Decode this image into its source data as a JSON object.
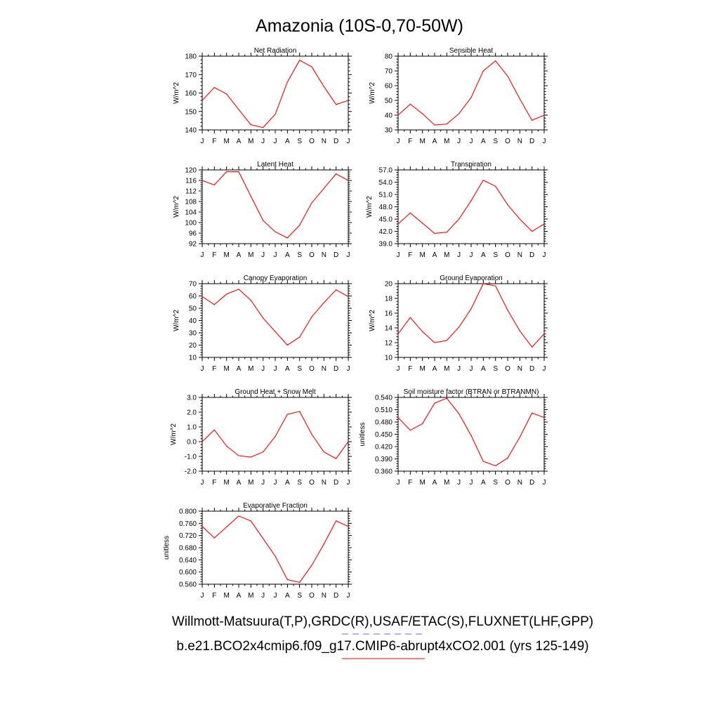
{
  "title": "Amazonia (10S-0,70-50W)",
  "legend": {
    "lines": [
      {
        "text": "Willmott-Matsuura(T,P),GRDC(R),USAF/ETAC(S),FLUXNET(LHF,GPP)",
        "line_color": "#6666ff",
        "line_style": "dashed"
      },
      {
        "text": "b.e21.BCO2x4cmip6.f09_g17.CMIP6-abrupt4xCO2.001 (yrs 125-149)",
        "line_color": "#ff0000",
        "line_style": "solid"
      }
    ]
  },
  "series_color": "#ff0000",
  "chart_data": [
    {
      "type": "line",
      "title": "Net Radiation",
      "ylabel": "W/m^2",
      "x": [
        "J",
        "F",
        "M",
        "A",
        "M",
        "J",
        "J",
        "A",
        "S",
        "O",
        "N",
        "D",
        "J"
      ],
      "values": [
        156.0,
        163.0,
        159.5,
        151.0,
        142.8,
        141.3,
        148.5,
        166.0,
        177.8,
        174.2,
        163.5,
        153.8,
        156.0
      ],
      "ylim": [
        140,
        180
      ],
      "yticks": [
        "140",
        "150",
        "160",
        "170",
        "180"
      ],
      "ytick_values": [
        140,
        150,
        160,
        170,
        180
      ]
    },
    {
      "type": "line",
      "title": "Sensible Heat",
      "ylabel": "W/m^2",
      "x": [
        "J",
        "F",
        "M",
        "A",
        "M",
        "J",
        "J",
        "A",
        "S",
        "O",
        "N",
        "D",
        "J"
      ],
      "values": [
        40.0,
        47.5,
        41.0,
        33.3,
        34.0,
        41.0,
        52.0,
        70.0,
        76.8,
        66.5,
        51.0,
        36.5,
        40.0
      ],
      "ylim": [
        30,
        80
      ],
      "yticks": [
        "30",
        "40",
        "50",
        "60",
        "70",
        "80"
      ],
      "ytick_values": [
        30,
        40,
        50,
        60,
        70,
        80
      ]
    },
    {
      "type": "line",
      "title": "Latent Heat",
      "ylabel": "W/m^2",
      "x": [
        "J",
        "F",
        "M",
        "A",
        "M",
        "J",
        "J",
        "A",
        "S",
        "O",
        "N",
        "D",
        "J"
      ],
      "values": [
        116.0,
        114.3,
        119.3,
        119.3,
        110.0,
        100.8,
        96.5,
        94.2,
        99.0,
        107.5,
        113.0,
        118.5,
        116.0
      ],
      "ylim": [
        92,
        120
      ],
      "yticks": [
        "92",
        "96",
        "100",
        "104",
        "108",
        "112",
        "116",
        "120"
      ],
      "ytick_values": [
        92,
        96,
        100,
        104,
        108,
        112,
        116,
        120
      ]
    },
    {
      "type": "line",
      "title": "Transpiration",
      "ylabel": "W/m^2",
      "x": [
        "J",
        "F",
        "M",
        "A",
        "M",
        "J",
        "J",
        "A",
        "S",
        "O",
        "N",
        "D",
        "J"
      ],
      "values": [
        43.8,
        46.5,
        44.0,
        41.5,
        41.8,
        45.0,
        49.5,
        54.5,
        53.0,
        48.5,
        45.0,
        42.0,
        43.8
      ],
      "ylim": [
        39.0,
        57.0
      ],
      "yticks": [
        "39.0",
        "42.0",
        "45.0",
        "48.0",
        "51.0",
        "54.0",
        "57.0"
      ],
      "ytick_values": [
        39,
        42,
        45,
        48,
        51,
        54,
        57
      ]
    },
    {
      "type": "line",
      "title": "Canopy Evaporation",
      "ylabel": "W/m^2",
      "x": [
        "J",
        "F",
        "M",
        "A",
        "M",
        "J",
        "J",
        "A",
        "S",
        "O",
        "N",
        "D",
        "J"
      ],
      "values": [
        59.5,
        53.0,
        61.5,
        65.5,
        56.5,
        42.0,
        31.0,
        20.0,
        26.5,
        43.0,
        54.5,
        65.0,
        59.5
      ],
      "ylim": [
        10,
        70
      ],
      "yticks": [
        "10",
        "20",
        "30",
        "40",
        "50",
        "60",
        "70"
      ],
      "ytick_values": [
        10,
        20,
        30,
        40,
        50,
        60,
        70
      ]
    },
    {
      "type": "line",
      "title": "Ground Evaporation",
      "ylabel": "W/m^2",
      "x": [
        "J",
        "F",
        "M",
        "A",
        "M",
        "J",
        "J",
        "A",
        "S",
        "O",
        "N",
        "D",
        "J"
      ],
      "values": [
        13.2,
        15.4,
        13.5,
        12.0,
        12.3,
        14.1,
        16.6,
        20.0,
        19.7,
        16.4,
        13.6,
        11.4,
        13.2
      ],
      "ylim": [
        10,
        20
      ],
      "yticks": [
        "10",
        "12",
        "14",
        "16",
        "18",
        "20"
      ],
      "ytick_values": [
        10,
        12,
        14,
        16,
        18,
        20
      ]
    },
    {
      "type": "line",
      "title": "Ground Heat + Snow Melt",
      "ylabel": "W/m^2",
      "x": [
        "J",
        "F",
        "M",
        "A",
        "M",
        "J",
        "J",
        "A",
        "S",
        "O",
        "N",
        "D",
        "J"
      ],
      "values": [
        0.0,
        0.8,
        -0.3,
        -0.95,
        -1.05,
        -0.7,
        0.35,
        1.85,
        2.05,
        0.5,
        -0.7,
        -1.15,
        0.0
      ],
      "ylim": [
        -2.0,
        3.0
      ],
      "yticks": [
        "-2.0",
        "-1.0",
        "0.0",
        "1.0",
        "2.0",
        "3.0"
      ],
      "ytick_values": [
        -2,
        -1,
        0,
        1,
        2,
        3
      ]
    },
    {
      "type": "line",
      "title": "Soil moisture factor (BTRAN or BTRANMN)",
      "ylabel": "unitless",
      "x": [
        "J",
        "F",
        "M",
        "A",
        "M",
        "J",
        "J",
        "A",
        "S",
        "O",
        "N",
        "D",
        "J"
      ],
      "values": [
        0.491,
        0.46,
        0.476,
        0.526,
        0.538,
        0.5,
        0.447,
        0.384,
        0.373,
        0.392,
        0.443,
        0.502,
        0.491
      ],
      "ylim": [
        0.36,
        0.54
      ],
      "yticks": [
        "0.360",
        "0.390",
        "0.420",
        "0.450",
        "0.480",
        "0.510",
        "0.540"
      ],
      "ytick_values": [
        0.36,
        0.39,
        0.42,
        0.45,
        0.48,
        0.51,
        0.54
      ]
    },
    {
      "type": "line",
      "title": "Evaporative Fraction",
      "ylabel": "unitless",
      "x": [
        "J",
        "F",
        "M",
        "A",
        "M",
        "J",
        "J",
        "A",
        "S",
        "O",
        "N",
        "D",
        "J"
      ],
      "values": [
        0.75,
        0.712,
        0.748,
        0.784,
        0.768,
        0.71,
        0.652,
        0.575,
        0.566,
        0.622,
        0.692,
        0.768,
        0.75
      ],
      "ylim": [
        0.56,
        0.8
      ],
      "yticks": [
        "0.560",
        "0.600",
        "0.640",
        "0.680",
        "0.720",
        "0.760",
        "0.800"
      ],
      "ytick_values": [
        0.56,
        0.6,
        0.64,
        0.68,
        0.72,
        0.76,
        0.8
      ]
    }
  ]
}
